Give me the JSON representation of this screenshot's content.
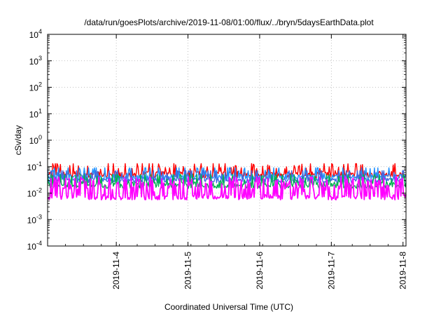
{
  "chart_data": {
    "type": "line",
    "title": "/data/run/goesPlots/archive/2019-11-08/01:00/flux/../bryn/5daysEarthData.plot",
    "xlabel": "Coordinated Universal Time (UTC)",
    "ylabel": "cSv/day",
    "yscale": "log",
    "ylim": [
      0.0001,
      10000
    ],
    "y_ticks": [
      {
        "value": 0.0001,
        "base": "10",
        "exp": "-4"
      },
      {
        "value": 0.001,
        "base": "10",
        "exp": "-3"
      },
      {
        "value": 0.01,
        "base": "10",
        "exp": "-2"
      },
      {
        "value": 0.1,
        "base": "10",
        "exp": "-1"
      },
      {
        "value": 1,
        "base": "10",
        "exp": "0"
      },
      {
        "value": 10,
        "base": "10",
        "exp": "1"
      },
      {
        "value": 100,
        "base": "10",
        "exp": "2"
      },
      {
        "value": 1000,
        "base": "10",
        "exp": "3"
      },
      {
        "value": 10000,
        "base": "10",
        "exp": "4"
      }
    ],
    "xlim": [
      "2019-11-03T01:00",
      "2019-11-08T01:00"
    ],
    "x_ticks": [
      {
        "value": "2019-11-04T00:00",
        "label": "2019-11-4"
      },
      {
        "value": "2019-11-05T00:00",
        "label": "2019-11-5"
      },
      {
        "value": "2019-11-06T00:00",
        "label": "2019-11-6"
      },
      {
        "value": "2019-11-07T00:00",
        "label": "2019-11-7"
      },
      {
        "value": "2019-11-08T00:00",
        "label": "2019-11-8"
      }
    ],
    "grid": true,
    "legend": "none",
    "series_colors": [
      "#ff0000",
      "#00b050",
      "#1e90ff",
      "#4169e1",
      "#ff00ff"
    ],
    "series": [
      {
        "color": "#ff0000",
        "baseline": 0.05,
        "spike_max": 0.13,
        "noise": 0.25
      },
      {
        "color": "#1e90ff",
        "baseline": 0.04,
        "spike_max": 0.09,
        "noise": 0.22
      },
      {
        "color": "#4169e1",
        "baseline": 0.03,
        "spike_max": 0.07,
        "noise": 0.18
      },
      {
        "color": "#00b050",
        "baseline": 0.02,
        "spike_max": 0.05,
        "noise": 0.25
      },
      {
        "color": "#ff00ff",
        "baseline": 0.007,
        "spike_max": 0.045,
        "noise": 0.2
      }
    ]
  }
}
